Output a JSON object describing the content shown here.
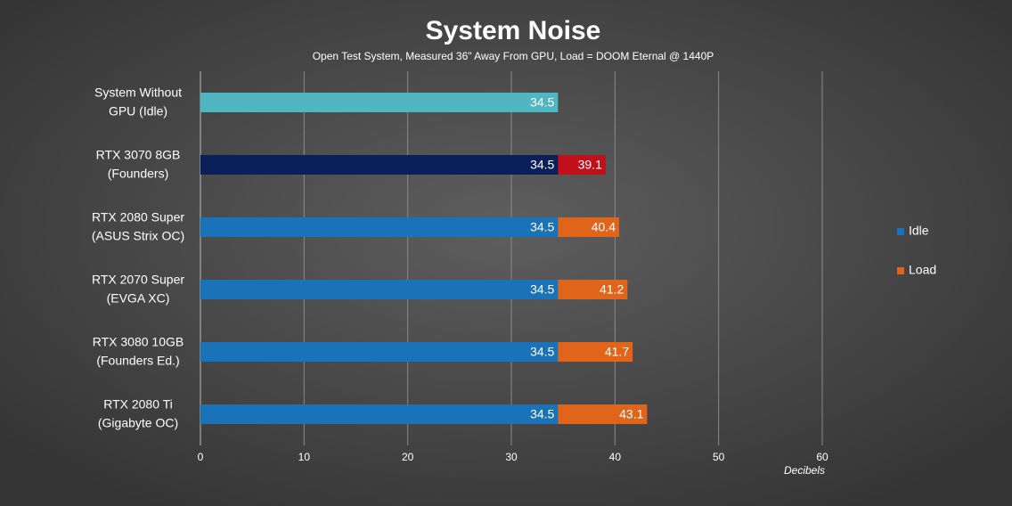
{
  "chart_data": {
    "type": "bar",
    "orientation": "horizontal",
    "title": "System Noise",
    "subtitle": "Open Test System, Measured 36\" Away From GPU, Load = DOOM Eternal @ 1440P",
    "x_label": "Decibels",
    "categories": [
      [
        "System Without",
        "GPU (Idle)"
      ],
      [
        "RTX 3070 8GB",
        "(Founders)"
      ],
      [
        "RTX 2080 Super",
        "(ASUS Strix OC)"
      ],
      [
        "RTX 2070 Super",
        "(EVGA XC)"
      ],
      [
        "RTX 3080 10GB",
        "(Founders Ed.)"
      ],
      [
        "RTX 2080 Ti",
        "(Gigabyte OC)"
      ]
    ],
    "series": [
      {
        "name": "Idle",
        "color": "#1a73b9",
        "point_colors": [
          "#4fb6c2",
          "#0b1f5a",
          "#1a73b9",
          "#1a73b9",
          "#1a73b9",
          "#1a73b9"
        ],
        "values": [
          34.5,
          34.5,
          34.5,
          34.5,
          34.5,
          34.5
        ]
      },
      {
        "name": "Load",
        "color": "#e0641a",
        "point_colors": [
          null,
          "#c0101a",
          "#e0641a",
          "#e0641a",
          "#e0641a",
          "#e0641a"
        ],
        "values": [
          null,
          39.1,
          40.4,
          41.2,
          41.7,
          43.1
        ]
      }
    ],
    "xlim": [
      0,
      60
    ],
    "xticks": [
      0,
      10,
      20,
      30,
      40,
      50,
      60
    ],
    "grid": true,
    "legend": "right"
  }
}
